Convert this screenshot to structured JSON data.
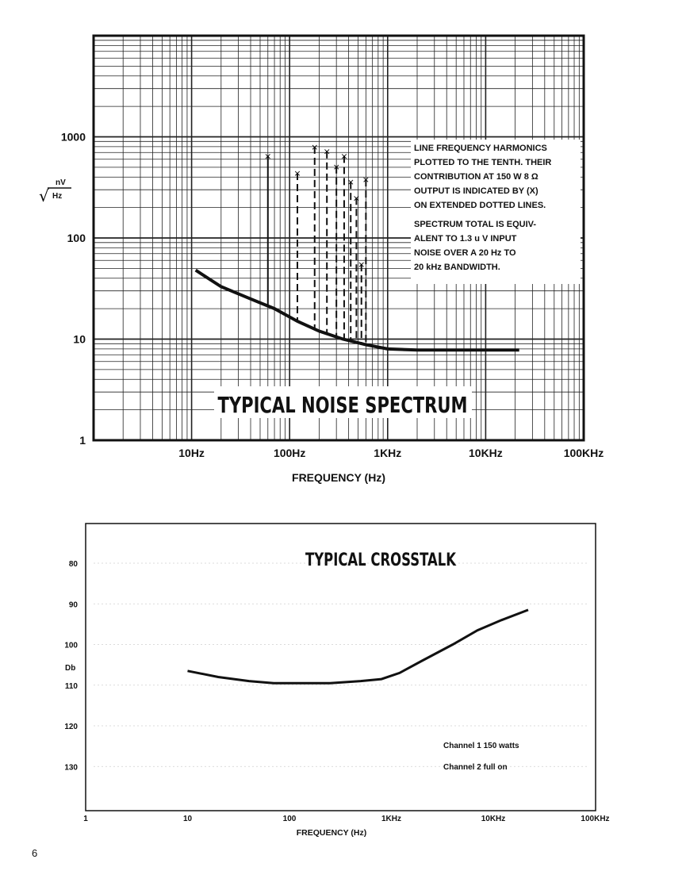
{
  "page_number": "6",
  "chart_data": [
    {
      "type": "line",
      "title": "TYPICAL NOISE SPECTRUM",
      "xlabel": "FREQUENCY (Hz)",
      "ylabel_top": "nV",
      "ylabel_bottom": "Hz",
      "x_scale": "log",
      "y_scale": "log",
      "xlim": [
        1,
        100000
      ],
      "ylim": [
        1,
        10000
      ],
      "grid": true,
      "x_tick_labels": [
        {
          "value": 10,
          "label": "10Hz"
        },
        {
          "value": 100,
          "label": "100Hz"
        },
        {
          "value": 1000,
          "label": "1KHz"
        },
        {
          "value": 10000,
          "label": "10KHz"
        },
        {
          "value": 100000,
          "label": "100KHz"
        }
      ],
      "y_tick_labels": [
        {
          "value": 1,
          "label": "1"
        },
        {
          "value": 10,
          "label": "10"
        },
        {
          "value": 100,
          "label": "100"
        },
        {
          "value": 1000,
          "label": "1000"
        }
      ],
      "series": [
        {
          "x": [
            11,
            20,
            40,
            70,
            120,
            200,
            350,
            600,
            1000,
            2000,
            5000,
            10000,
            22000
          ],
          "y": [
            48,
            33,
            25,
            20,
            15,
            12,
            10,
            8.8,
            8,
            7.8,
            7.8,
            7.8,
            7.8
          ]
        }
      ],
      "harmonics": [
        {
          "x": 60,
          "y": 650,
          "style": "solid"
        },
        {
          "x": 120,
          "y": 440,
          "style": "dashed"
        },
        {
          "x": 180,
          "y": 800,
          "style": "dashed"
        },
        {
          "x": 240,
          "y": 720,
          "style": "dashed"
        },
        {
          "x": 300,
          "y": 510,
          "style": "dashed"
        },
        {
          "x": 360,
          "y": 650,
          "style": "dashed"
        },
        {
          "x": 420,
          "y": 360,
          "style": "dashed"
        },
        {
          "x": 480,
          "y": 250,
          "style": "dashed"
        },
        {
          "x": 540,
          "y": 55,
          "style": "dashed"
        },
        {
          "x": 600,
          "y": 380,
          "style": "dashed"
        }
      ],
      "annotation_lines": [
        "LINE FREQUENCY HARMONICS",
        "PLOTTED TO THE TENTH. THEIR",
        "CONTRIBUTION AT 150 W 8 Ω",
        "OUTPUT IS INDICATED BY (X)",
        "ON EXTENDED DOTTED LINES.",
        "SPECTRUM TOTAL IS EQUIV-",
        "ALENT TO 1.3 u V INPUT",
        "NOISE OVER A 20 Hz TO",
        "20 kHz BANDWIDTH."
      ]
    },
    {
      "type": "line",
      "title": "TYPICAL CROSSTALK",
      "xlabel": "FREQUENCY (Hz)",
      "ylabel": "Db",
      "x_scale": "log",
      "xlim": [
        1,
        100000
      ],
      "ylim": [
        140,
        75
      ],
      "y_inverted": true,
      "grid": false,
      "x_tick_labels": [
        {
          "value": 1,
          "label": "1"
        },
        {
          "value": 10,
          "label": "10"
        },
        {
          "value": 100,
          "label": "100"
        },
        {
          "value": 1000,
          "label": "1KHz"
        },
        {
          "value": 10000,
          "label": "10KHz"
        },
        {
          "value": 100000,
          "label": "100KHz"
        }
      ],
      "y_tick_labels": [
        {
          "value": 80,
          "label": "80"
        },
        {
          "value": 90,
          "label": "90"
        },
        {
          "value": 100,
          "label": "100"
        },
        {
          "value": 110,
          "label": "110"
        },
        {
          "value": 120,
          "label": "120"
        },
        {
          "value": 130,
          "label": "130"
        }
      ],
      "series": [
        {
          "x": [
            10,
            20,
            40,
            70,
            120,
            250,
            500,
            800,
            1200,
            2000,
            4000,
            7000,
            12000,
            22000
          ],
          "y": [
            106.5,
            108,
            109,
            109.5,
            109.5,
            109.5,
            109,
            108.5,
            107,
            104,
            100,
            96.5,
            94,
            91.5
          ]
        }
      ],
      "annotation_lines": [
        "Channel 1 150 watts",
        "Channel 2 full on"
      ]
    }
  ]
}
